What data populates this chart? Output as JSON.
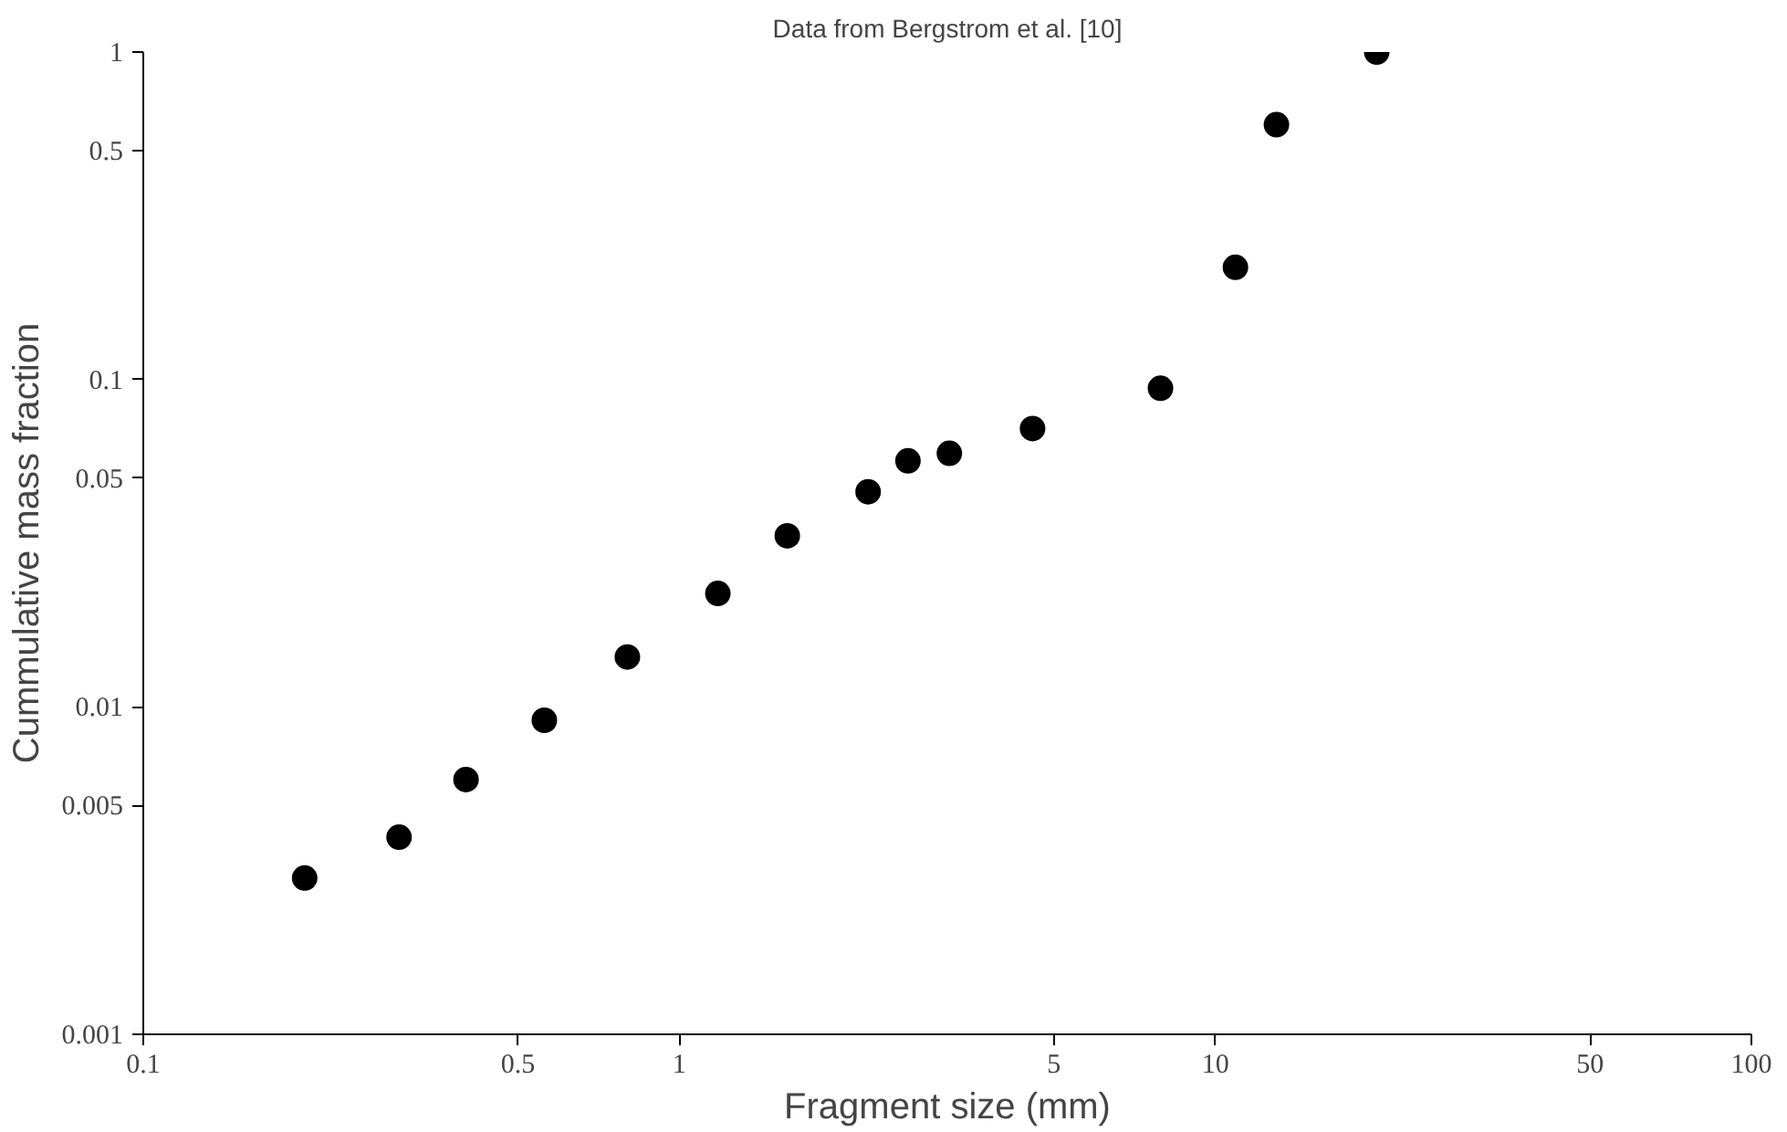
{
  "chart_data": {
    "type": "scatter",
    "title": "Data from Bergstrom et al. [10]",
    "xlabel": "Fragment size (mm)",
    "ylabel": "Cummulative mass fraction",
    "x": [
      0.2,
      0.3,
      0.4,
      0.56,
      0.8,
      1.18,
      1.59,
      2.25,
      2.67,
      3.19,
      4.56,
      7.9,
      10.9,
      13.0,
      20
    ],
    "series": [
      {
        "color": "#000000",
        "values": [
          0.003,
          0.004,
          0.006,
          0.0091,
          0.0142,
          0.0222,
          0.0333,
          0.0454,
          0.0564,
          0.0595,
          0.0708,
          0.094,
          0.22,
          0.6,
          1.0
        ]
      }
    ],
    "log": "xy",
    "xlim": [
      0.1,
      100
    ],
    "ylim": [
      0.001,
      1
    ],
    "xticks": [
      0.1,
      0.5,
      1,
      5,
      10,
      50,
      100
    ],
    "yticks": [
      0.001,
      0.005,
      0.01,
      0.05,
      0.1,
      0.5,
      1
    ],
    "marker": "circle"
  }
}
